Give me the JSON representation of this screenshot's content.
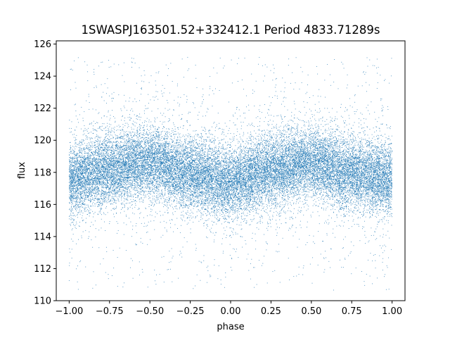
{
  "chart_data": {
    "type": "scatter",
    "title": "1SWASPJ163501.52+332412.1 Period 4833.71289s",
    "xlabel": "phase",
    "ylabel": "flux",
    "xlim": [
      -1.08,
      1.08
    ],
    "ylim": [
      110,
      126.2
    ],
    "grid": false,
    "legend": "none",
    "marker_color": "#1f77b4",
    "x_ticks": [
      -1.0,
      -0.75,
      -0.5,
      -0.25,
      0.0,
      0.25,
      0.5,
      0.75,
      1.0
    ],
    "x_tick_labels": [
      "−1.00",
      "−0.75",
      "−0.50",
      "−0.25",
      "0.00",
      "0.25",
      "0.50",
      "0.75",
      "1.00"
    ],
    "y_ticks": [
      110,
      112,
      114,
      116,
      118,
      120,
      122,
      124,
      126
    ],
    "y_tick_labels": [
      "110",
      "112",
      "114",
      "116",
      "118",
      "120",
      "122",
      "124",
      "126"
    ],
    "series": [
      {
        "description_of_distribution": "dense phase-folded light curve spanning phase -1 to 1, flux mostly 115.5-120.5, modulated with two cycles",
        "mean_flux_curve": {
          "phase": [
            -1.0,
            -0.75,
            -0.5,
            -0.25,
            0.0,
            0.25,
            0.5,
            0.75,
            1.0
          ],
          "flux": [
            117.6,
            118.2,
            118.6,
            117.9,
            117.4,
            118.2,
            118.6,
            117.9,
            117.6
          ]
        },
        "core_spread": 1.1,
        "outlier_range": [
          110.6,
          125.2
        ]
      }
    ]
  }
}
